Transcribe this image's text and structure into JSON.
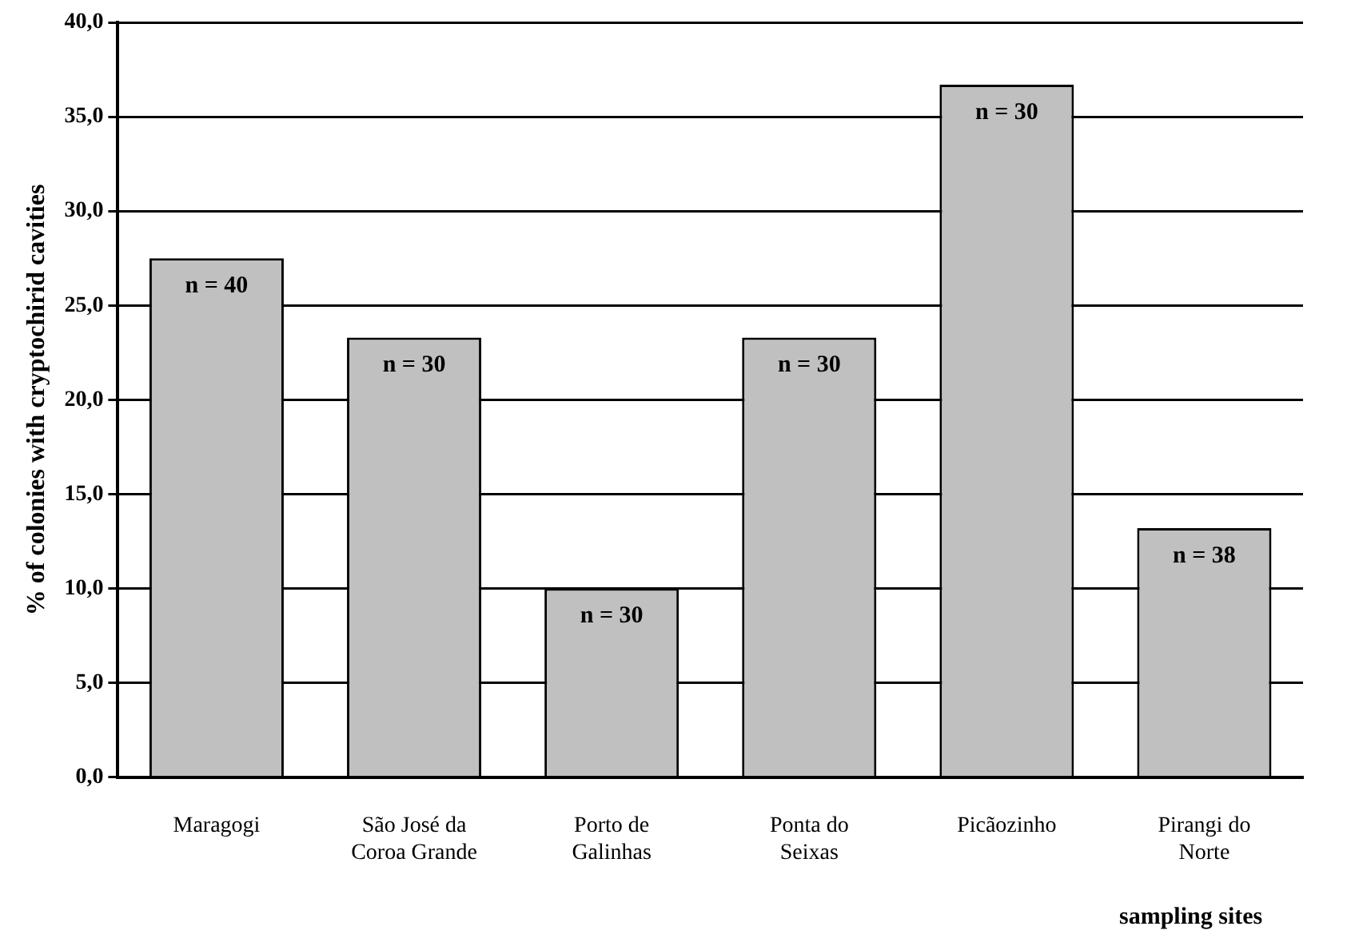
{
  "chart_data": {
    "type": "bar",
    "xlabel": "sampling sites",
    "ylabel": "% of colonies with cryptochirid cavities",
    "categories": [
      "Maragogi",
      "São José da Coroa Grande",
      "Porto de Galinhas",
      "Ponta do Seixas",
      "Picãozinho",
      "Pirangi do Norte"
    ],
    "values": [
      27.5,
      23.3,
      10.0,
      23.3,
      36.7,
      13.2
    ],
    "color": "#c0c0c0",
    "ylim": [
      0,
      40
    ],
    "yticks": [
      {
        "value": 0,
        "label": "0,0"
      },
      {
        "value": 5,
        "label": "5,0"
      },
      {
        "value": 10,
        "label": "10,0"
      },
      {
        "value": 15,
        "label": "15,0"
      },
      {
        "value": 20,
        "label": "20,0"
      },
      {
        "value": 25,
        "label": "25,0"
      },
      {
        "value": 30,
        "label": "30,0"
      },
      {
        "value": 35,
        "label": "35,0"
      },
      {
        "value": 40,
        "label": "40,0"
      }
    ],
    "grid": "y",
    "legend": false,
    "annotations": [
      {
        "text": "n = 40",
        "x": "Maragogi",
        "y": 27.5
      },
      {
        "text": "n = 30",
        "x": "São José da Coroa Grande",
        "y": 23.3
      },
      {
        "text": "n = 30",
        "x": "Porto de Galinhas",
        "y": 10.0
      },
      {
        "text": "n = 30",
        "x": "Ponta do Seixas",
        "y": 23.3
      },
      {
        "text": "n = 30",
        "x": "Picãozinho",
        "y": 36.7
      },
      {
        "text": "n = 38",
        "x": "Pirangi do Norte",
        "y": 13.2
      }
    ]
  }
}
